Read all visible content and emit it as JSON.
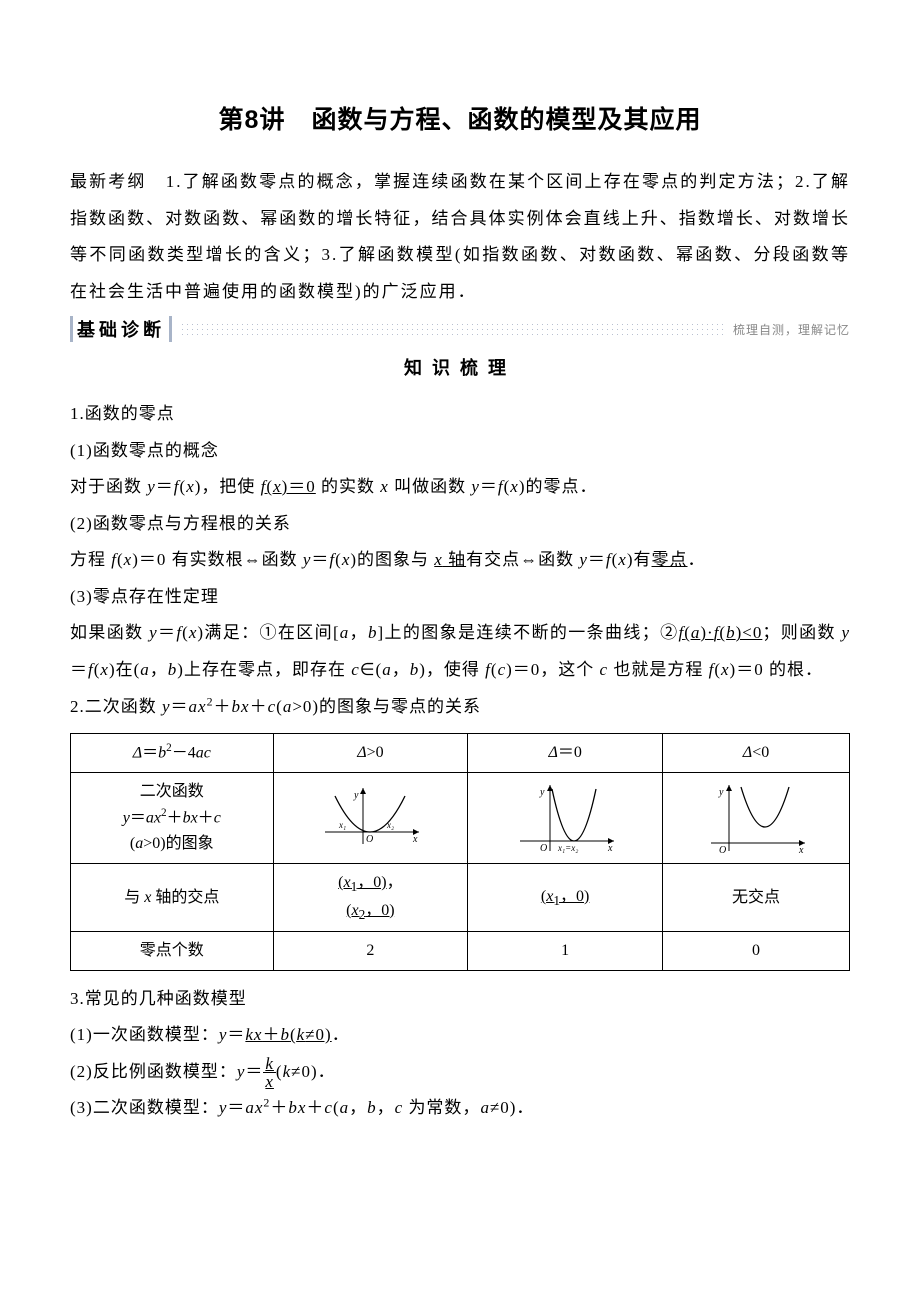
{
  "title": "第8讲　函数与方程、函数的模型及其应用",
  "syllabus_html": "最新考纲　1.了解函数零点的概念，掌握连续函数在某个区间上存在零点的判定方法；2.了解指数函数、对数函数、幂函数的增长特征，结合具体实例体会直线上升、指数增长、对数增长等不同函数类型增长的含义；3.了解函数模型(如指数函数、对数函数、幂函数、分段函数等在社会生活中普遍使用的函数模型)的广泛应用．",
  "band_label": "基础诊断",
  "band_note": "梳理自测，理解记忆",
  "subhead": "知识梳理",
  "p1": "1.函数的零点",
  "p2": "(1)函数零点的概念",
  "p3_html": "对于函数 <em class='i'>y</em>＝<em class='i'>f</em>(<em class='i'>x</em>)，把使 <u><em class='i'>f</em>(<em class='i'>x</em>)＝0</u> 的实数 <em class='i'>x</em> 叫做函数 <em class='i'>y</em>＝<em class='i'>f</em>(<em class='i'>x</em>)的零点．",
  "p4": "(2)函数零点与方程根的关系",
  "p5_html": "方程 <em class='i'>f</em>(<em class='i'>x</em>)＝0 有实数根⇔函数 <em class='i'>y</em>＝<em class='i'>f</em>(<em class='i'>x</em>)的图象与 <u><em class='i'>x</em> 轴</u>有交点⇔函数 <em class='i'>y</em>＝<em class='i'>f</em>(<em class='i'>x</em>)有<u>零点</u>．",
  "p6": "(3)零点存在性定理",
  "p7_html": "如果函数 <em class='i'>y</em>＝<em class='i'>f</em>(<em class='i'>x</em>)满足：①在区间[<em class='i'>a</em>，<em class='i'>b</em>]上的图象是连续不断的一条曲线；②<u><em class='i'>f</em>(<em class='i'>a</em>)·<em class='i'>f</em>(<em class='i'>b</em>)&lt;0</u>；则函数 <em class='i'>y</em>＝<em class='i'>f</em>(<em class='i'>x</em>)在(<em class='i'>a</em>，<em class='i'>b</em>)上存在零点，即存在 <em class='i'>c</em>∈(<em class='i'>a</em>，<em class='i'>b</em>)，使得 <em class='i'>f</em>(<em class='i'>c</em>)＝0，这个 <em class='i'>c</em> 也就是方程 <em class='i'>f</em>(<em class='i'>x</em>)＝0 的根．",
  "p8_html": "2.二次函数 <em class='i'>y</em>＝<em class='i'>ax</em><sup>2</sup>＋<em class='i'>bx</em>＋<em class='i'>c</em>(<em class='i'>a</em>&gt;0)的图象与零点的关系",
  "table": {
    "r1c1_html": "<em class='i'>Δ</em>＝<em class='i'>b</em><sup>2</sup>－4<em class='i'>ac</em>",
    "r1c2_html": "<em class='i'>Δ</em>&gt;0",
    "r1c3_html": "<em class='i'>Δ</em>＝0",
    "r1c4_html": "<em class='i'>Δ</em>&lt;0",
    "r2c1_html": "二次函数<br><em class='i'>y</em>＝<em class='i'>ax</em><sup>2</sup>＋<em class='i'>bx</em>＋<em class='i'>c</em><br>(<em class='i'>a</em>&gt;0)的图象",
    "r3c1_html": "与 <em class='i'>x</em> 轴的交点",
    "r3c2_html": "<u>(<em class='i'>x</em><sub>1</sub>，0)</u>，<br><u>(<em class='i'>x</em><sub>2</sub>，0)</u>",
    "r3c3_html": "<u>(<em class='i'>x</em><sub>1</sub>，0)</u>",
    "r3c4": "无交点",
    "r4c1": "零点个数",
    "r4c2": "2",
    "r4c3": "1",
    "r4c4": "0"
  },
  "p9": "3.常见的几种函数模型",
  "p10_html": "(1)一次函数模型：<em class='i'>y</em>＝<u><em class='i'>kx</em>＋<em class='i'>b</em>(<em class='i'>k</em>≠0)</u>．",
  "p11_html": "(2)反比例函数模型：<em class='i'>y</em>＝<span class='frac'><span class='num'><em class='i'>k</em></span><span class='den'><em class='i'>x</em></span></span>(<em class='i'>k</em>≠0)．",
  "p12_html": "(3)二次函数模型：<em class='i'>y</em>＝<em class='i'>ax</em><sup>2</sup>＋<em class='i'>bx</em>＋<em class='i'>c</em>(<em class='i'>a</em>，<em class='i'>b</em>，<em class='i'>c</em> 为常数，<em class='i'>a</em>≠0)．",
  "graphs": {
    "g2": {
      "x1_label": "x₁",
      "x2_label": "x₂"
    },
    "g3": {
      "label": "x₁=x₂"
    }
  },
  "colors": {
    "axis": "#000000",
    "band_dot": "#b8c0d0",
    "band_bar": "#a8b4c8"
  }
}
